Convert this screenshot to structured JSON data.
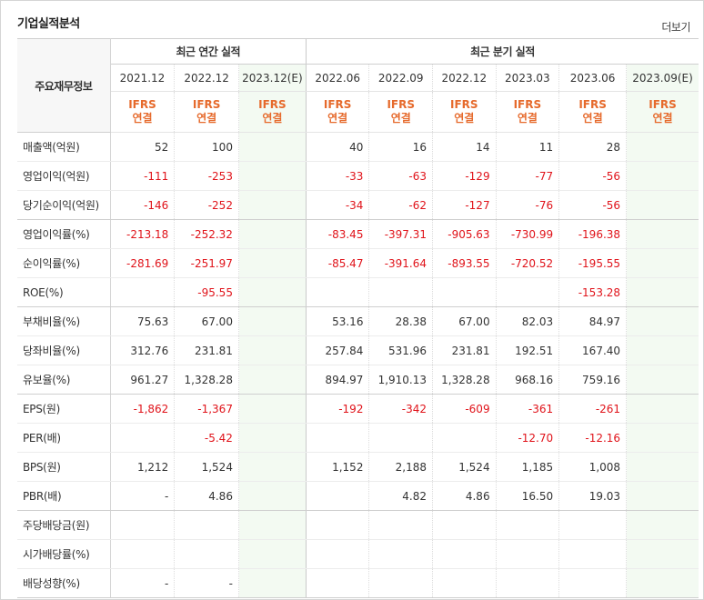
{
  "header": {
    "title": "기업실적분석",
    "more_label": "더보기"
  },
  "corner_label": "주요재무정보",
  "groups": [
    {
      "label": "최근 연간 실적"
    },
    {
      "label": "최근 분기 실적"
    }
  ],
  "columns": [
    {
      "period": "2021.12",
      "std1": "IFRS",
      "std2": "연결",
      "estimate": false
    },
    {
      "period": "2022.12",
      "std1": "IFRS",
      "std2": "연결",
      "estimate": false
    },
    {
      "period": "2023.12(E)",
      "std1": "IFRS",
      "std2": "연결",
      "estimate": true
    },
    {
      "period": "2022.06",
      "std1": "IFRS",
      "std2": "연결",
      "estimate": false
    },
    {
      "period": "2022.09",
      "std1": "IFRS",
      "std2": "연결",
      "estimate": false
    },
    {
      "period": "2022.12",
      "std1": "IFRS",
      "std2": "연결",
      "estimate": false
    },
    {
      "period": "2023.03",
      "std1": "IFRS",
      "std2": "연결",
      "estimate": false
    },
    {
      "period": "2023.06",
      "std1": "IFRS",
      "std2": "연결",
      "estimate": false
    },
    {
      "period": "2023.09(E)",
      "std1": "IFRS",
      "std2": "연결",
      "estimate": true
    }
  ],
  "rows": [
    {
      "label": "매출액(억원)",
      "values": [
        "52",
        "100",
        "",
        "40",
        "16",
        "14",
        "11",
        "28",
        ""
      ]
    },
    {
      "label": "영업이익(억원)",
      "values": [
        "-111",
        "-253",
        "",
        "-33",
        "-63",
        "-129",
        "-77",
        "-56",
        ""
      ]
    },
    {
      "label": "당기순이익(억원)",
      "values": [
        "-146",
        "-252",
        "",
        "-34",
        "-62",
        "-127",
        "-76",
        "-56",
        ""
      ]
    },
    {
      "label": "영업이익률(%)",
      "values": [
        "-213.18",
        "-252.32",
        "",
        "-83.45",
        "-397.31",
        "-905.63",
        "-730.99",
        "-196.38",
        ""
      ]
    },
    {
      "label": "순이익률(%)",
      "values": [
        "-281.69",
        "-251.97",
        "",
        "-85.47",
        "-391.64",
        "-893.55",
        "-720.52",
        "-195.55",
        ""
      ]
    },
    {
      "label": "ROE(%)",
      "values": [
        "",
        "-95.55",
        "",
        "",
        "",
        "",
        "",
        "-153.28",
        ""
      ]
    },
    {
      "label": "부채비율(%)",
      "values": [
        "75.63",
        "67.00",
        "",
        "53.16",
        "28.38",
        "67.00",
        "82.03",
        "84.97",
        ""
      ]
    },
    {
      "label": "당좌비율(%)",
      "values": [
        "312.76",
        "231.81",
        "",
        "257.84",
        "531.96",
        "231.81",
        "192.51",
        "167.40",
        ""
      ]
    },
    {
      "label": "유보율(%)",
      "values": [
        "961.27",
        "1,328.28",
        "",
        "894.97",
        "1,910.13",
        "1,328.28",
        "968.16",
        "759.16",
        ""
      ]
    },
    {
      "label": "EPS(원)",
      "values": [
        "-1,862",
        "-1,367",
        "",
        "-192",
        "-342",
        "-609",
        "-361",
        "-261",
        ""
      ]
    },
    {
      "label": "PER(배)",
      "values": [
        "",
        "-5.42",
        "",
        "",
        "",
        "",
        "-12.70",
        "-12.16",
        ""
      ]
    },
    {
      "label": "BPS(원)",
      "values": [
        "1,212",
        "1,524",
        "",
        "1,152",
        "2,188",
        "1,524",
        "1,185",
        "1,008",
        ""
      ]
    },
    {
      "label": "PBR(배)",
      "values": [
        "-",
        "4.86",
        "",
        "",
        "4.82",
        "4.86",
        "16.50",
        "19.03",
        ""
      ]
    },
    {
      "label": "주당배당금(원)",
      "values": [
        "",
        "",
        "",
        "",
        "",
        "",
        "",
        "",
        ""
      ]
    },
    {
      "label": "시가배당률(%)",
      "values": [
        "",
        "",
        "",
        "",
        "",
        "",
        "",
        "",
        ""
      ]
    },
    {
      "label": "배당성향(%)",
      "values": [
        "-",
        "-",
        "",
        "",
        "",
        "",
        "",
        "",
        ""
      ]
    }
  ],
  "colors": {
    "negative": "#e0131a",
    "standard": "#e66a2c",
    "estimate_bg": "#f3faf2"
  }
}
